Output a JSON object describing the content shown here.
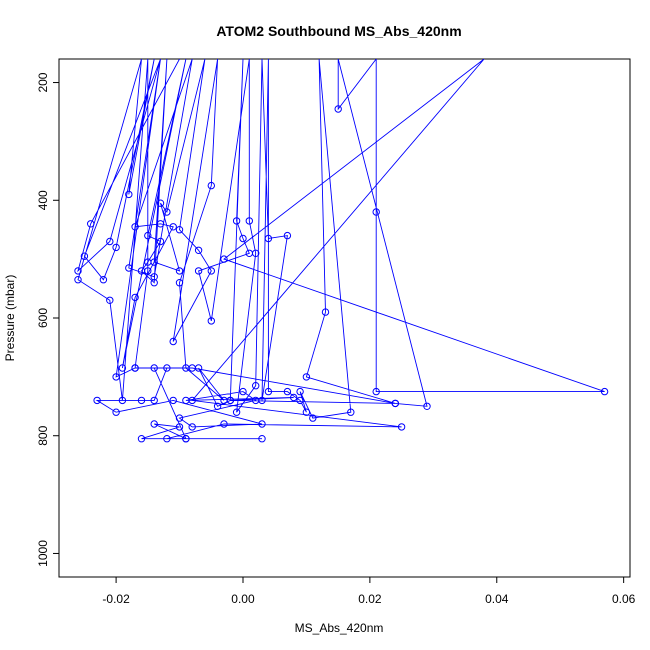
{
  "chart_data": {
    "type": "scatter",
    "title": "ATOM2 Southbound MS_Abs_420nm",
    "xlabel": "MS_Abs_420nm",
    "ylabel": "Pressure (mbar)",
    "xlim": [
      -0.029,
      0.061
    ],
    "ylim": [
      1040,
      160
    ],
    "y_reversed": true,
    "grid": false,
    "legend": "none",
    "connected": true,
    "x_ticks": [
      -0.02,
      0.0,
      0.02,
      0.04,
      0.06
    ],
    "x_tick_labels": [
      "-0.02",
      "0.00",
      "0.02",
      "0.04",
      "0.06"
    ],
    "y_ticks": [
      200,
      400,
      600,
      800,
      1000
    ],
    "y_tick_labels": [
      "200",
      "400",
      "600",
      "800",
      "1000"
    ],
    "series": [
      {
        "color": "#0000ff",
        "points": [
          [
            -0.01,
            160
          ],
          [
            -0.024,
            440
          ],
          [
            -0.026,
            520
          ],
          [
            -0.021,
            470
          ],
          [
            -0.013,
            160
          ],
          [
            -0.025,
            495
          ],
          [
            -0.022,
            535
          ],
          [
            -0.02,
            480
          ],
          [
            -0.014,
            160
          ],
          [
            -0.018,
            390
          ],
          [
            -0.016,
            160
          ],
          [
            -0.026,
            535
          ],
          [
            -0.021,
            570
          ],
          [
            -0.019,
            740
          ],
          [
            -0.015,
            160
          ],
          [
            -0.015,
            520
          ],
          [
            -0.017,
            685
          ],
          [
            -0.02,
            700
          ],
          [
            -0.013,
            160
          ],
          [
            -0.018,
            515
          ],
          [
            -0.014,
            530
          ],
          [
            -0.008,
            160
          ],
          [
            -0.017,
            445
          ],
          [
            -0.013,
            440
          ],
          [
            -0.011,
            445
          ],
          [
            -0.017,
            565
          ],
          [
            -0.019,
            685
          ],
          [
            -0.009,
            160
          ],
          [
            -0.015,
            460
          ],
          [
            -0.013,
            470
          ],
          [
            -0.015,
            505
          ],
          [
            -0.016,
            520
          ],
          [
            -0.014,
            540
          ],
          [
            -0.012,
            160
          ],
          [
            -0.014,
            505
          ],
          [
            -0.01,
            520
          ],
          [
            -0.013,
            405
          ],
          [
            -0.012,
            420
          ],
          [
            -0.006,
            160
          ],
          [
            -0.01,
            450
          ],
          [
            -0.007,
            485
          ],
          [
            -0.005,
            520
          ],
          [
            -0.011,
            640
          ],
          [
            -0.004,
            160
          ],
          [
            -0.005,
            375
          ],
          [
            -0.01,
            540
          ],
          [
            -0.009,
            685
          ],
          [
            -0.003,
            740
          ],
          [
            -0.007,
            685
          ],
          [
            -0.004,
            750
          ],
          [
            -0.002,
            740
          ],
          [
            0.0,
            160
          ],
          [
            -0.001,
            435
          ],
          [
            0.0,
            465
          ],
          [
            0.001,
            490
          ],
          [
            -0.007,
            520
          ],
          [
            -0.005,
            605
          ],
          [
            0.001,
            160
          ],
          [
            0.001,
            435
          ],
          [
            0.002,
            490
          ],
          [
            -0.001,
            760
          ],
          [
            0.002,
            715
          ],
          [
            0.003,
            160
          ],
          [
            0.004,
            465
          ],
          [
            0.007,
            460
          ],
          [
            0.003,
            740
          ],
          [
            0.004,
            160
          ],
          [
            0.004,
            725
          ],
          [
            0.007,
            725
          ],
          [
            0.009,
            740
          ],
          [
            0.01,
            760
          ],
          [
            0.009,
            725
          ],
          [
            0.011,
            770
          ],
          [
            0.017,
            760
          ],
          [
            0.012,
            160
          ],
          [
            0.013,
            590
          ],
          [
            0.01,
            700
          ],
          [
            0.024,
            745
          ],
          [
            0.029,
            750
          ],
          [
            0.015,
            160
          ],
          [
            0.015,
            245
          ],
          [
            0.021,
            160
          ],
          [
            0.021,
            420
          ],
          [
            0.021,
            725
          ],
          [
            0.057,
            725
          ],
          [
            -0.003,
            500
          ],
          [
            0.038,
            160
          ],
          [
            -0.008,
            740
          ],
          [
            0.025,
            785
          ],
          [
            -0.003,
            780
          ],
          [
            -0.012,
            805
          ],
          [
            0.003,
            805
          ],
          [
            -0.009,
            805
          ],
          [
            -0.014,
            780
          ],
          [
            -0.01,
            785
          ],
          [
            -0.016,
            805
          ],
          [
            -0.009,
            805
          ],
          [
            -0.014,
            685
          ],
          [
            -0.012,
            685
          ],
          [
            -0.014,
            740
          ],
          [
            -0.016,
            740
          ],
          [
            -0.023,
            740
          ],
          [
            -0.02,
            760
          ],
          [
            -0.011,
            740
          ],
          [
            0.003,
            780
          ],
          [
            -0.008,
            785
          ],
          [
            -0.01,
            770
          ],
          [
            0.002,
            740
          ],
          [
            0.0,
            725
          ],
          [
            -0.009,
            740
          ],
          [
            0.008,
            735
          ],
          [
            -0.002,
            740
          ],
          [
            0.024,
            745
          ],
          [
            -0.008,
            685
          ],
          [
            -0.017,
            685
          ]
        ]
      }
    ]
  }
}
